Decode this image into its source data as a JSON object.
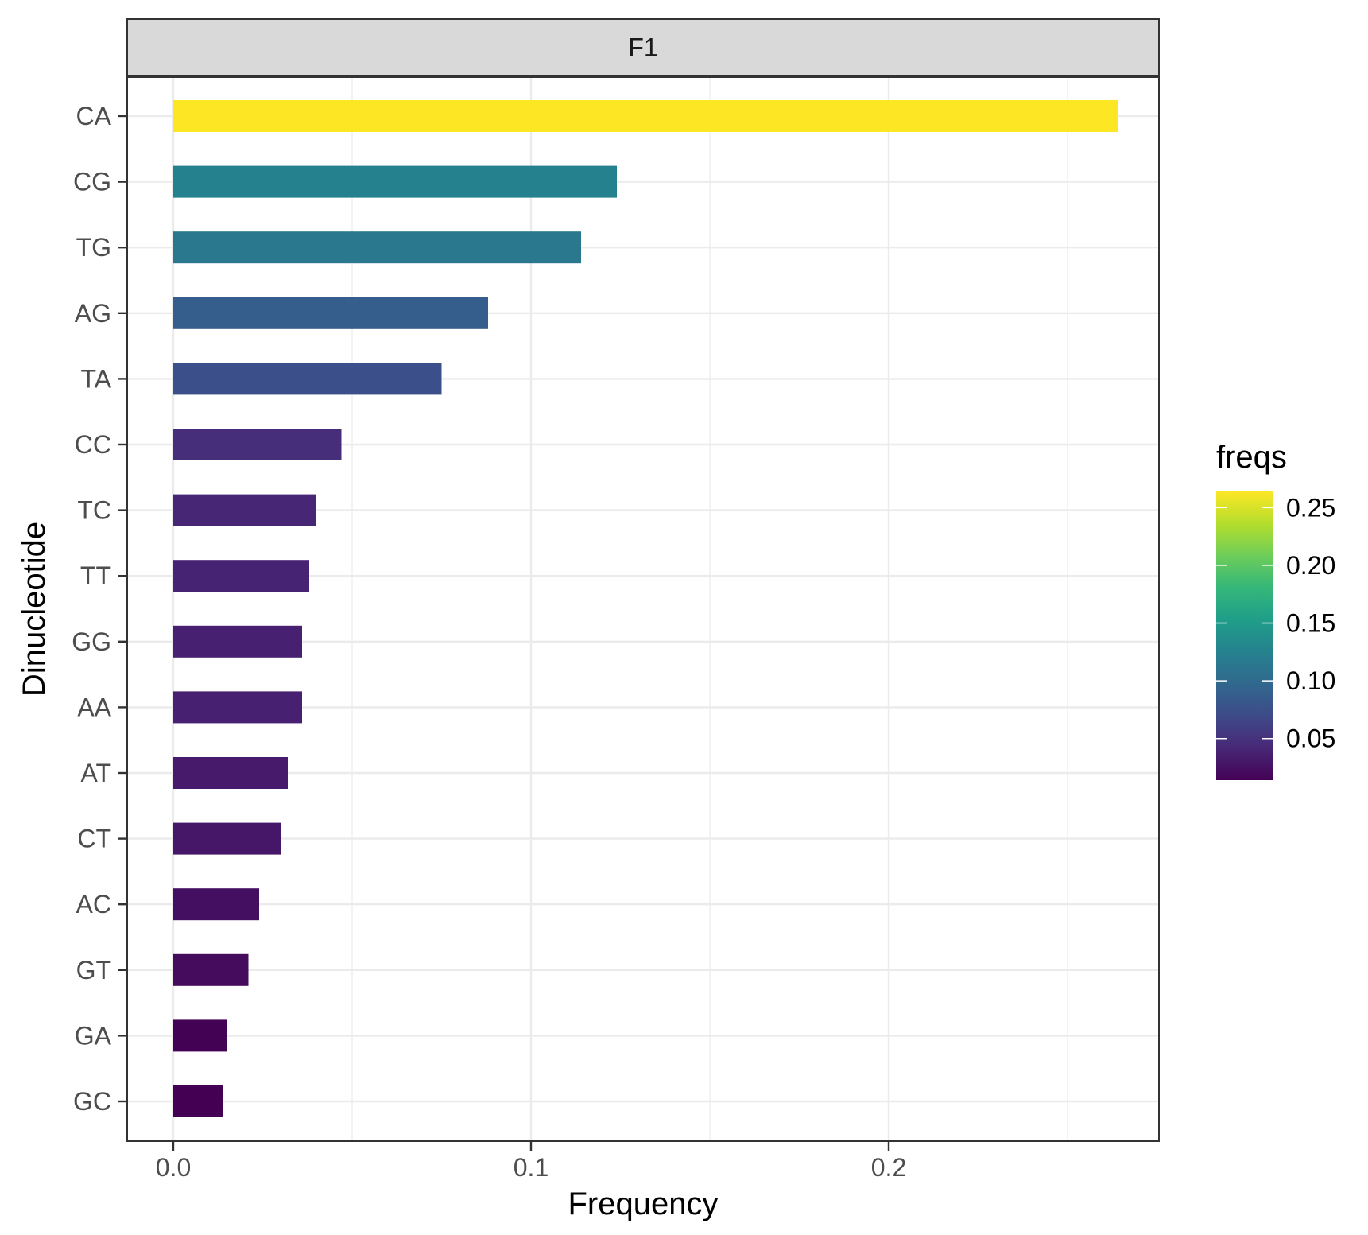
{
  "chart_data": {
    "type": "bar",
    "orientation": "horizontal",
    "facet_label": "F1",
    "xlabel": "Frequency",
    "ylabel": "Dinucleotide",
    "xlim": [
      0,
      0.27
    ],
    "x_ticks": [
      0.0,
      0.1,
      0.2
    ],
    "x_tick_labels": [
      "0.0",
      "0.1",
      "0.2"
    ],
    "grid": true,
    "legend_placement": "right",
    "categories": [
      "CA",
      "CG",
      "TG",
      "AG",
      "TA",
      "CC",
      "TC",
      "TT",
      "GG",
      "AA",
      "AT",
      "CT",
      "AC",
      "GT",
      "GA",
      "GC"
    ],
    "values": [
      0.264,
      0.124,
      0.114,
      0.088,
      0.075,
      0.047,
      0.04,
      0.038,
      0.036,
      0.036,
      0.032,
      0.03,
      0.024,
      0.021,
      0.015,
      0.014
    ],
    "colors": {
      "viridis": [
        "#440154",
        "#482878",
        "#3E4A89",
        "#31688E",
        "#26828E",
        "#1F9E89",
        "#35B779",
        "#6DCD59",
        "#B4DE2C",
        "#FDE725"
      ],
      "background": "#ffffff",
      "grid": "#ebebeb",
      "strip_fill": "#d9d9d9",
      "border": "#333333"
    },
    "legend": {
      "title": "freqs",
      "ticks": [
        0.05,
        0.1,
        0.15,
        0.2,
        0.25
      ],
      "tick_labels": [
        "0.05",
        "0.10",
        "0.15",
        "0.20",
        "0.25"
      ],
      "range": [
        0.014,
        0.264
      ]
    }
  }
}
